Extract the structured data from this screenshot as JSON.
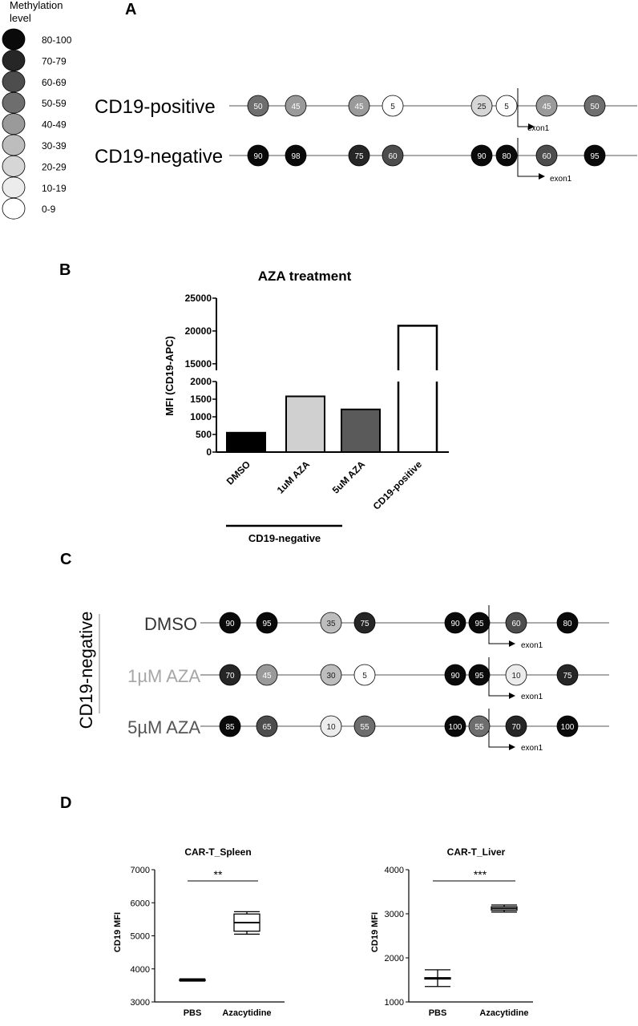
{
  "legend": {
    "title_line1": "Methylation",
    "title_line2": "level",
    "items": [
      {
        "label": "80-100",
        "color": "#0a0a0a"
      },
      {
        "label": "70-79",
        "color": "#262626"
      },
      {
        "label": "60-69",
        "color": "#4d4d4d"
      },
      {
        "label": "50-59",
        "color": "#6e6e6e"
      },
      {
        "label": "40-49",
        "color": "#9a9a9a"
      },
      {
        "label": "30-39",
        "color": "#bdbdbd"
      },
      {
        "label": "20-29",
        "color": "#d6d6d6"
      },
      {
        "label": "10-19",
        "color": "#ececec"
      },
      {
        "label": "0-9",
        "color": "#ffffff"
      }
    ]
  },
  "panel_a": {
    "letter": "A",
    "exon_label": "exon1",
    "rows": [
      {
        "label": "CD19-positive",
        "values": [
          "50",
          "45",
          "45",
          "5",
          "25",
          "5",
          "45",
          "50"
        ]
      },
      {
        "label": "CD19-negative",
        "values": [
          "90",
          "98",
          "75",
          "60",
          "90",
          "80",
          "60",
          "95"
        ]
      }
    ]
  },
  "panel_b": {
    "letter": "B",
    "group_label": "CD19-negative",
    "chart_data": {
      "type": "bar",
      "title": "AZA treatment",
      "ylabel": "MFI (CD19-APC)",
      "xlabel": "",
      "categories": [
        "DMSO",
        "1uM AZA",
        "5uM AZA",
        "CD19-positive"
      ],
      "values": [
        550,
        1580,
        1210,
        20800
      ],
      "bar_colors": [
        "#000000",
        "#d0d0d0",
        "#5a5a5a",
        "#ffffff"
      ],
      "y_axis_break": {
        "lower": [
          0,
          2000
        ],
        "upper": [
          14000,
          25000
        ]
      },
      "yticks_lower": [
        "0",
        "500",
        "1000",
        "1500",
        "2000"
      ],
      "yticks_upper": [
        "15000",
        "20000",
        "25000"
      ]
    }
  },
  "panel_c": {
    "letter": "C",
    "side_label": "CD19-negative",
    "exon_label": "exon1",
    "rows": [
      {
        "label": "DMSO",
        "label_color": "#333333",
        "values": [
          "90",
          "95",
          "35",
          "75",
          "90",
          "95",
          "60",
          "80"
        ]
      },
      {
        "label": "1µM AZA",
        "label_color": "#a6a6a6",
        "values": [
          "70",
          "45",
          "30",
          "5",
          "90",
          "95",
          "10",
          "75"
        ]
      },
      {
        "label": "5µM AZA",
        "label_color": "#555555",
        "values": [
          "85",
          "65",
          "10",
          "55",
          "100",
          "55",
          "70",
          "100"
        ]
      }
    ]
  },
  "panel_d": {
    "letter": "D",
    "chart_data": [
      {
        "type": "box",
        "title": "CAR-T_Spleen",
        "ylabel": "CD19 MFI",
        "categories": [
          "PBS",
          "Azacytidine"
        ],
        "ylim": [
          3000,
          7000
        ],
        "yticks": [
          "3000",
          "4000",
          "5000",
          "6000",
          "7000"
        ],
        "boxes": [
          {
            "min": 3630,
            "q1": 3650,
            "median": 3665,
            "q3": 3680,
            "max": 3700
          },
          {
            "min": 5050,
            "q1": 5140,
            "median": 5400,
            "q3": 5660,
            "max": 5730
          }
        ],
        "significance": "**"
      },
      {
        "type": "box",
        "title": "CAR-T_Liver",
        "ylabel": "CD19 MFI",
        "categories": [
          "PBS",
          "Azacytidine"
        ],
        "ylim": [
          1000,
          4000
        ],
        "yticks": [
          "1000",
          "2000",
          "3000",
          "4000"
        ],
        "boxes": [
          {
            "min": 1350,
            "q1": 1520,
            "median": 1540,
            "q3": 1550,
            "max": 1730
          },
          {
            "min": 3040,
            "q1": 3080,
            "median": 3120,
            "q3": 3160,
            "max": 3200
          }
        ],
        "significance": "***"
      }
    ]
  }
}
